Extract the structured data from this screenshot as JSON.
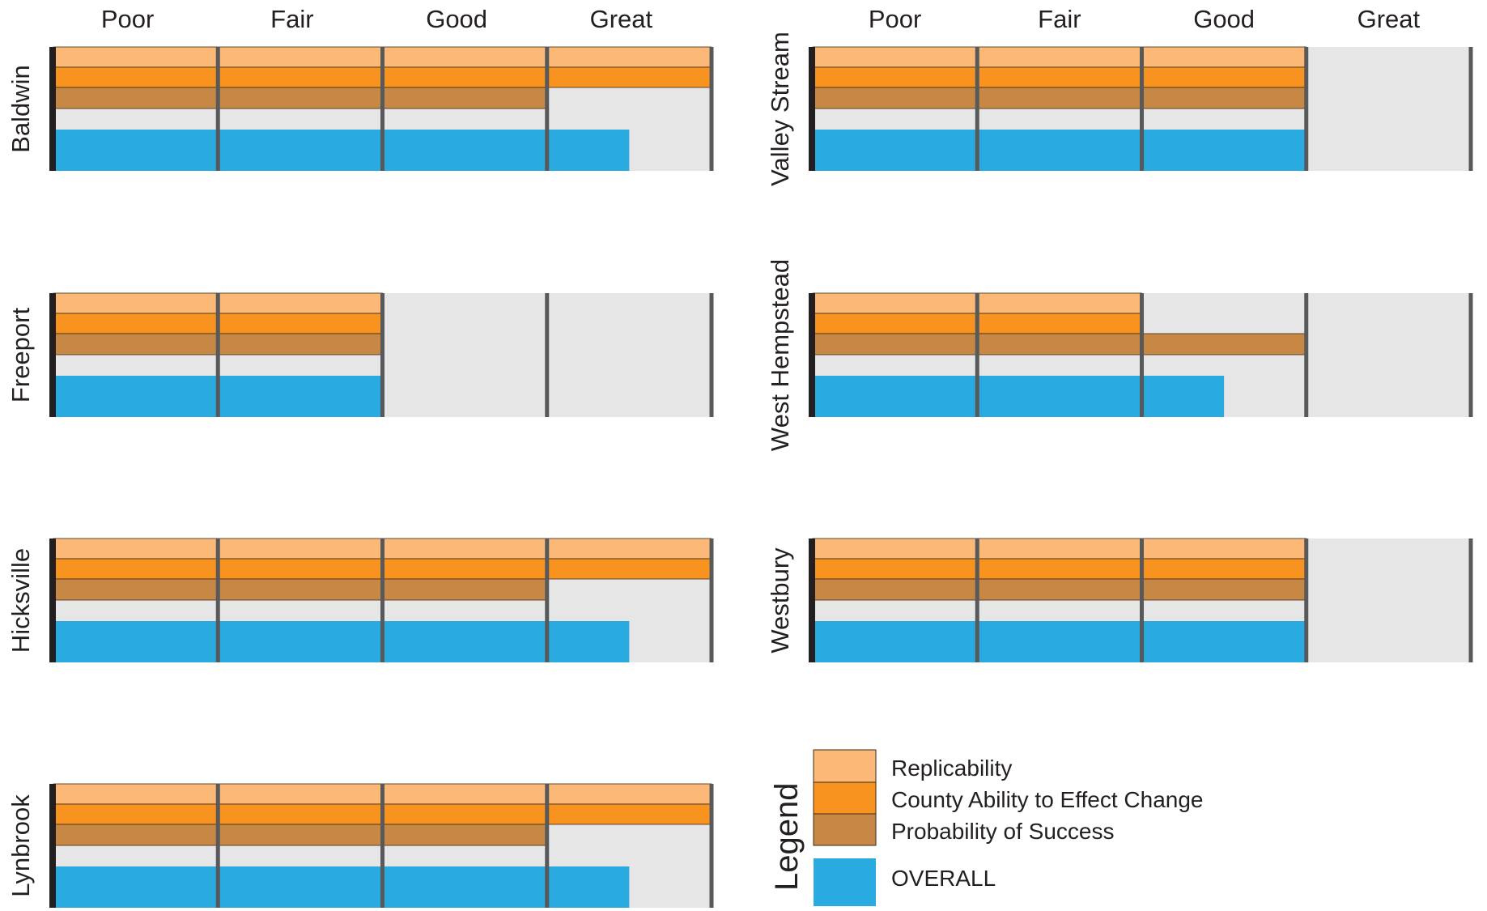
{
  "chart_data": {
    "type": "bar",
    "orientation": "horizontal",
    "scale": {
      "categories": [
        "Poor",
        "Fair",
        "Good",
        "Great"
      ],
      "min": 0,
      "max": 4
    },
    "series_order": [
      "Replicability",
      "County Ability to Effect Change",
      "Probability of Success",
      "OVERALL"
    ],
    "colors": {
      "Replicability": "#fbb876",
      "County Ability to Effect Change": "#f7931e",
      "Probability of Success": "#c68844",
      "OVERALL": "#29abe2",
      "background": "#e6e6e6",
      "gridline": "#58595b",
      "axis": "#231f20"
    },
    "panels": [
      {
        "name": "Baldwin",
        "values": {
          "Replicability": 4,
          "County Ability to Effect Change": 4,
          "Probability of Success": 3,
          "OVERALL": 3.5
        }
      },
      {
        "name": "Valley Stream",
        "values": {
          "Replicability": 3,
          "County Ability to Effect Change": 3,
          "Probability of Success": 3,
          "OVERALL": 3
        }
      },
      {
        "name": "Freeport",
        "values": {
          "Replicability": 2,
          "County Ability to Effect Change": 2,
          "Probability of Success": 2,
          "OVERALL": 2
        }
      },
      {
        "name": "West Hempstead",
        "values": {
          "Replicability": 2,
          "County Ability to Effect Change": 2,
          "Probability of Success": 3,
          "OVERALL": 2.5
        }
      },
      {
        "name": "Hicksville",
        "values": {
          "Replicability": 4,
          "County Ability to Effect Change": 4,
          "Probability of Success": 3,
          "OVERALL": 3.5
        }
      },
      {
        "name": "Westbury",
        "values": {
          "Replicability": 3,
          "County Ability to Effect Change": 3,
          "Probability of Success": 3,
          "OVERALL": 3
        }
      },
      {
        "name": "Lynbrook",
        "values": {
          "Replicability": 4,
          "County Ability to Effect Change": 4,
          "Probability of Success": 3,
          "OVERALL": 3.5
        }
      }
    ],
    "legend": {
      "title": "Legend",
      "placement": "bottom-right",
      "items": [
        "Replicability",
        "County Ability to Effect Change",
        "Probability of Success",
        "OVERALL"
      ]
    },
    "grid": true
  }
}
